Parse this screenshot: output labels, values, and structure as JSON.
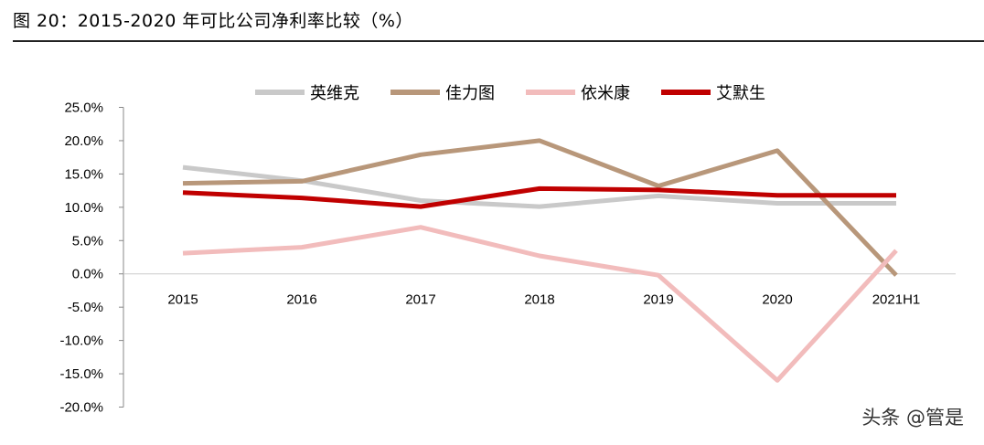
{
  "figure": {
    "title": "图 20：2015-2020 年可比公司净利率比较（%）",
    "watermark": "头条 @管是"
  },
  "chart_data": {
    "type": "line",
    "title": "",
    "xlabel": "",
    "ylabel": "",
    "categories": [
      "2015",
      "2016",
      "2017",
      "2018",
      "2019",
      "2020",
      "2021H1"
    ],
    "ylim": [
      -20,
      25
    ],
    "yticks": [
      "25.0%",
      "20.0%",
      "15.0%",
      "10.0%",
      "5.0%",
      "0.0%",
      "-5.0%",
      "-10.0%",
      "-15.0%",
      "-20.0%"
    ],
    "legend_position": "top-center",
    "grid": false,
    "series": [
      {
        "name": "英维克",
        "color": "#c9c9c9",
        "values": [
          16.0,
          14.0,
          11.0,
          10.1,
          11.7,
          10.6,
          10.6
        ]
      },
      {
        "name": "佳力图",
        "color": "#b8977a",
        "values": [
          13.6,
          13.9,
          17.9,
          20.0,
          13.2,
          18.5,
          -0.2
        ]
      },
      {
        "name": "依米康",
        "color": "#f2bcbc",
        "values": [
          3.1,
          4.0,
          7.0,
          2.7,
          -0.2,
          -16.0,
          3.5
        ]
      },
      {
        "name": "艾默生",
        "color": "#c00000",
        "values": [
          12.2,
          11.4,
          10.1,
          12.8,
          12.6,
          11.8,
          11.8
        ]
      }
    ]
  }
}
